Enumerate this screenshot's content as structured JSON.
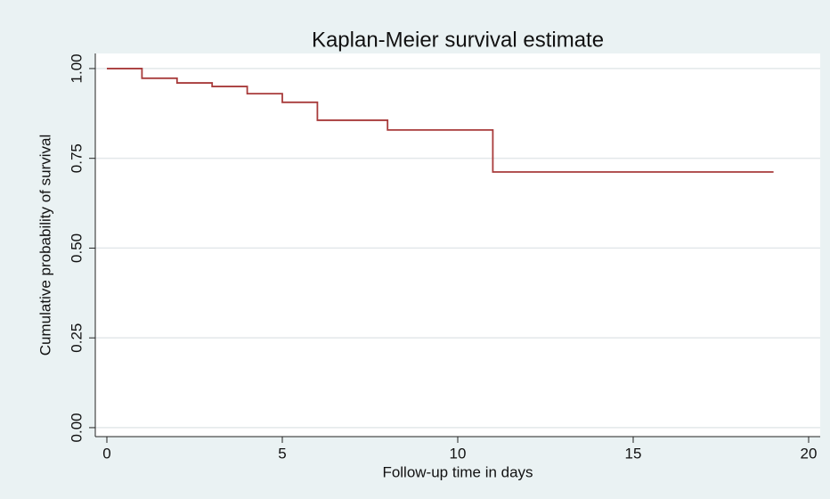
{
  "chart_data": {
    "type": "step",
    "title": "Kaplan-Meier survival estimate",
    "x_label": "Follow-up  time in days",
    "y_label": "Cumulative probability of survival",
    "x": [
      0,
      1,
      2,
      3,
      4,
      5,
      6,
      8,
      11,
      19
    ],
    "series": [
      {
        "color": "#a83b3b",
        "values": [
          1.0,
          0.973,
          0.96,
          0.95,
          0.93,
          0.906,
          0.856,
          0.829,
          0.712,
          0.712
        ]
      }
    ],
    "xlim": [
      -0.33,
      20.33
    ],
    "xticks": [
      0,
      5,
      10,
      15,
      20
    ],
    "ylim": [
      -0.025,
      1.042
    ],
    "yticks": [
      {
        "value": 0,
        "label": "0.00"
      },
      0.25,
      {
        "value": 0.5,
        "label": "0.50"
      },
      0.75,
      {
        "value": 1,
        "label": "1.00"
      }
    ],
    "grid": true
  }
}
